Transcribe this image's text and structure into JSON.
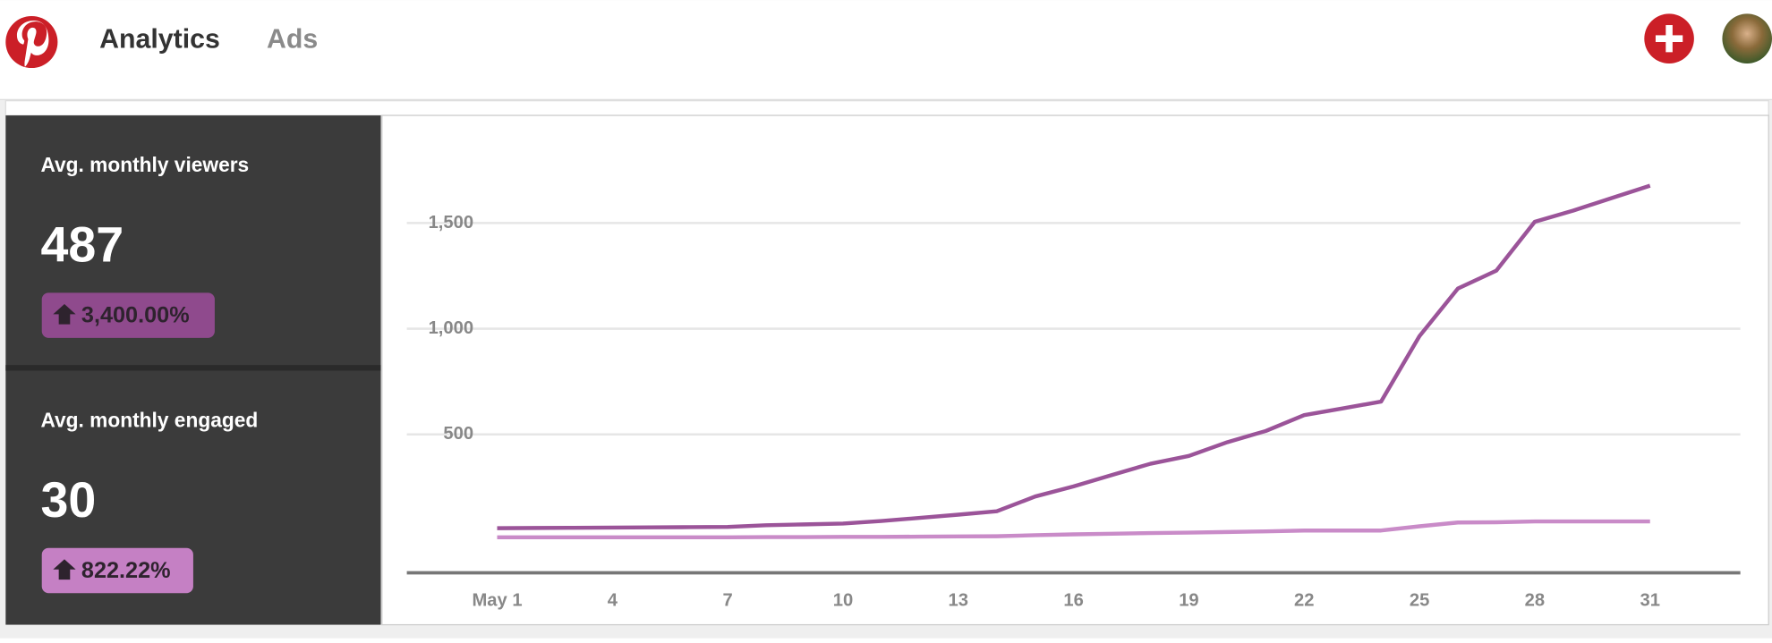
{
  "header": {
    "nav": [
      "Analytics",
      "Ads"
    ]
  },
  "stats": [
    {
      "label": "Avg. monthly viewers",
      "value": 487,
      "change": "3,400.00%"
    },
    {
      "label": "Avg. monthly engaged",
      "value": 30,
      "change": "822.22%"
    }
  ],
  "chart_data": {
    "type": "line",
    "x": [
      1,
      2,
      3,
      4,
      5,
      6,
      7,
      8,
      9,
      10,
      11,
      12,
      13,
      14,
      15,
      16,
      17,
      18,
      19,
      20,
      21,
      22,
      23,
      24,
      25,
      26,
      27,
      28,
      29,
      30,
      31
    ],
    "series": [
      {
        "color": "#9b5499",
        "values": [
          56,
          57,
          58,
          59,
          60,
          61,
          62,
          70,
          74,
          78,
          90,
          105,
          120,
          136,
          206,
          254,
          308,
          361,
          398,
          463,
          516,
          591,
          623,
          655,
          965,
          1190,
          1275,
          1506,
          1559,
          1618,
          1677
        ]
      },
      {
        "color": "#c98bc8",
        "values": [
          13,
          13,
          13,
          13,
          13,
          13,
          13,
          14,
          14,
          15,
          15,
          16,
          17,
          18,
          23,
          27,
          30,
          33,
          35,
          38,
          41,
          45,
          45,
          45,
          65,
          83,
          84,
          88,
          88,
          88,
          88
        ]
      }
    ],
    "xlim": [
      -1.35,
      33.35
    ],
    "ylim": [
      -155,
      2020
    ],
    "xticks": [
      {
        "value": 1,
        "label": "May 1"
      },
      4,
      7,
      10,
      13,
      16,
      19,
      22,
      25,
      28,
      31
    ],
    "yticks": [
      500,
      {
        "value": 1000,
        "label": "1,000"
      },
      {
        "value": 1500,
        "label": "1,500"
      }
    ],
    "grid": true
  }
}
